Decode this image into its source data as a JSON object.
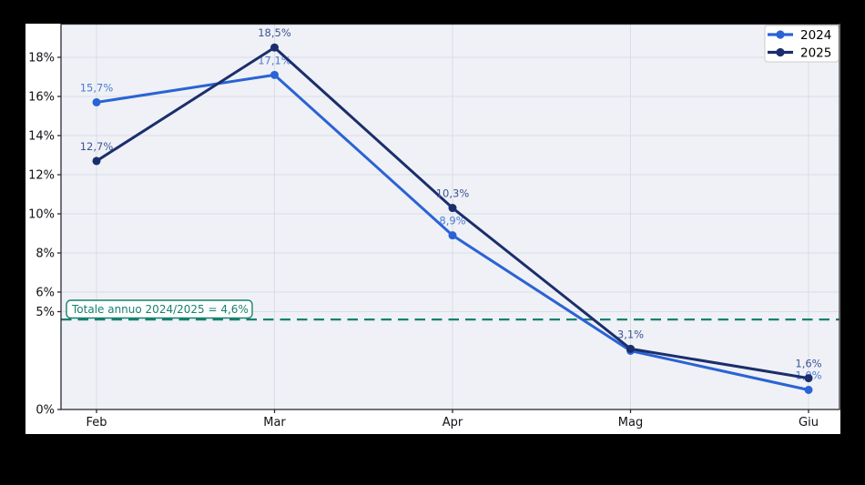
{
  "chart_data": {
    "type": "line",
    "categories": [
      "Feb",
      "Mar",
      "Apr",
      "Mag",
      "Giu"
    ],
    "series": [
      {
        "name": "2024",
        "color": "#2a63d4",
        "label_color": "#4d7bd6",
        "values": [
          15.7,
          17.1,
          8.9,
          3.0,
          1.0
        ],
        "point_labels": [
          "15,7%",
          "17,1%",
          "8,9%",
          "",
          "1,0%"
        ]
      },
      {
        "name": "2025",
        "color": "#1b2e6b",
        "label_color": "#3e5494",
        "values": [
          12.7,
          18.5,
          10.3,
          3.1,
          1.6
        ],
        "point_labels": [
          "12,7%",
          "18,5%",
          "10,3%",
          "3,1%",
          "1,6%"
        ]
      }
    ],
    "yticks": [
      {
        "value": 0,
        "label": "0%"
      },
      {
        "value": 5,
        "label": "5%"
      },
      {
        "value": 6,
        "label": "6%"
      },
      {
        "value": 8,
        "label": "8%"
      },
      {
        "value": 10,
        "label": "10%"
      },
      {
        "value": 12,
        "label": "12%"
      },
      {
        "value": 14,
        "label": "14%"
      },
      {
        "value": 16,
        "label": "16%"
      },
      {
        "value": 18,
        "label": "18%"
      }
    ],
    "ylim": [
      0,
      19.72
    ],
    "grid": true,
    "legend": {
      "position": "top-right",
      "entries": [
        "2024",
        "2025"
      ]
    },
    "reference_line": {
      "value": 4.6,
      "style": "dashed",
      "color": "#17816e",
      "label": "Totale annuo 2024/2025 = 4,6%"
    },
    "colors": {
      "figure_background": "#ffffff",
      "plot_background": "#eff1f6",
      "grid": "#dadde6",
      "spine": "#2b2b33",
      "tick_label": "#111118",
      "legend_border": "#cccccc",
      "canvas_background": "#000000"
    }
  }
}
